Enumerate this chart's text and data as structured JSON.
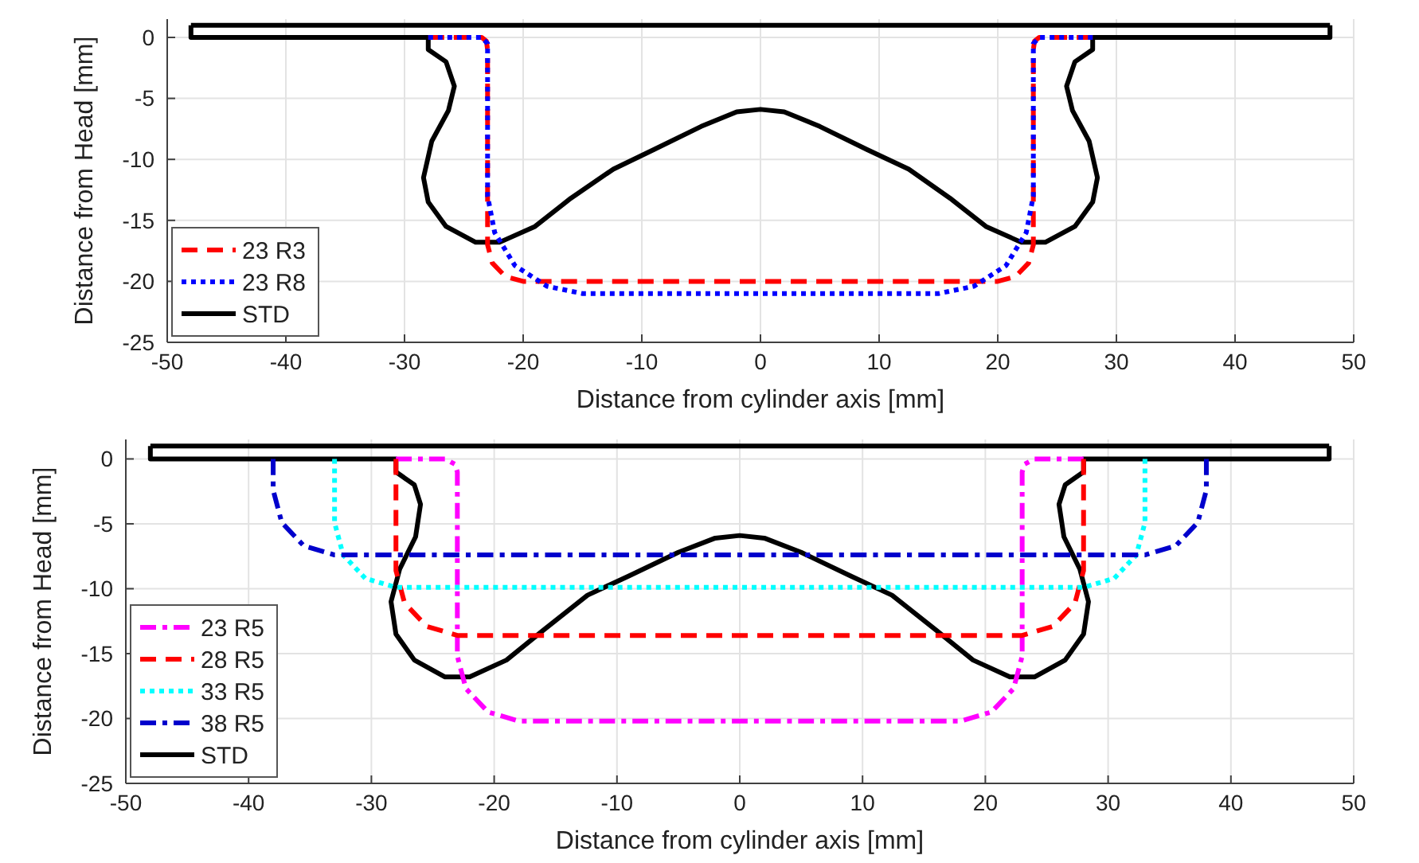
{
  "chart_data": [
    {
      "type": "line",
      "xlabel": "Distance from cylinder axis [mm]",
      "ylabel": "Distance from Head [mm]",
      "xlim": [
        -50,
        50
      ],
      "ylim": [
        -25,
        1.5
      ],
      "xticks": [
        -50,
        -40,
        -30,
        -20,
        -10,
        0,
        10,
        20,
        30,
        40,
        50
      ],
      "yticks": [
        -25,
        -20,
        -15,
        -10,
        -5,
        0
      ],
      "grid": true,
      "legend": "bottom left",
      "marker": "none",
      "series": [
        {
          "name": "23 R3",
          "color": "#ff0000",
          "line_style": "dashed",
          "x": [
            -28,
            -23.5,
            -23.1,
            -23,
            -23,
            -22.6,
            -21.5,
            -20,
            20,
            21.5,
            22.6,
            23,
            23,
            23.1,
            23.5,
            28
          ],
          "values": [
            0,
            0,
            -0.3,
            -1,
            -17,
            -18.5,
            -19.6,
            -20,
            -20,
            -19.6,
            -18.5,
            -17,
            -1,
            -0.3,
            0,
            0
          ]
        },
        {
          "name": "23 R8",
          "color": "#0000ff",
          "line_style": "dotted",
          "x": [
            -28,
            -23.5,
            -23,
            -23,
            -22.4,
            -20.7,
            -18,
            -15,
            15,
            18,
            20.7,
            22.4,
            23,
            23,
            23.5,
            28
          ],
          "values": [
            0,
            0,
            -0.5,
            -13,
            -16,
            -18.7,
            -20.4,
            -21,
            -21,
            -20.4,
            -18.7,
            -16,
            -13,
            -0.5,
            0,
            0
          ]
        },
        {
          "name": "STD",
          "color": "#000000",
          "line_style": "solid",
          "x": [
            -48,
            -48,
            -28,
            -28,
            -26.5,
            -25.8,
            -26.3,
            -27.7,
            -28.4,
            -28,
            -26.5,
            -24,
            -22,
            -19,
            -16,
            -12.4,
            -9,
            -5,
            -2,
            0,
            2,
            5,
            9,
            12.5,
            16,
            19,
            22,
            24,
            26.5,
            28,
            28.4,
            27.7,
            26.3,
            25.8,
            26.5,
            28,
            28,
            48,
            48
          ],
          "values": [
            1,
            0,
            0,
            -1,
            -2,
            -4,
            -6,
            -8.5,
            -11.5,
            -13.5,
            -15.5,
            -16.8,
            -16.8,
            -15.5,
            -13.2,
            -10.8,
            -9.2,
            -7.3,
            -6.1,
            -5.9,
            -6.1,
            -7.3,
            -9.2,
            -10.8,
            -13.2,
            -15.5,
            -16.8,
            -16.8,
            -15.5,
            -13.5,
            -11.5,
            -8.5,
            -6,
            -4,
            -2,
            -1,
            0,
            0,
            1
          ]
        },
        {
          "color": "#000000",
          "line_style": "solid",
          "x": [
            -48,
            48
          ],
          "values": [
            1,
            1
          ]
        }
      ]
    },
    {
      "type": "line",
      "xlabel": "Distance from cylinder axis [mm]",
      "ylabel": "Distance from Head [mm]",
      "xlim": [
        -50,
        50
      ],
      "ylim": [
        -25,
        1.5
      ],
      "xticks": [
        -50,
        -40,
        -30,
        -20,
        -10,
        0,
        10,
        20,
        30,
        40,
        50
      ],
      "yticks": [
        -25,
        -20,
        -15,
        -10,
        -5,
        0
      ],
      "grid": true,
      "legend": "bottom left",
      "marker": "none",
      "series": [
        {
          "name": "23 R5",
          "color": "#ff00ff",
          "line_style": "dashdot",
          "x": [
            -28,
            -24,
            -23.2,
            -23,
            -23,
            -22.3,
            -20.5,
            -18,
            18,
            20.5,
            22.3,
            23,
            23,
            23.2,
            24,
            28
          ],
          "values": [
            0,
            0,
            -0.4,
            -1,
            -15.2,
            -17.7,
            -19.5,
            -20.2,
            -20.2,
            -19.5,
            -17.7,
            -15.2,
            -1,
            -0.4,
            0,
            0
          ]
        },
        {
          "name": "28 R5",
          "color": "#ff0000",
          "line_style": "dashed",
          "x": [
            -28,
            -28,
            -27.3,
            -25.5,
            -23,
            23,
            25.5,
            27.3,
            28,
            28
          ],
          "values": [
            0,
            -8.6,
            -11.1,
            -12.9,
            -13.6,
            -13.6,
            -12.9,
            -11.1,
            -8.6,
            0
          ]
        },
        {
          "name": "33 R5",
          "color": "#00ffff",
          "line_style": "dotted",
          "x": [
            -33,
            -33,
            -32.3,
            -30.5,
            -28,
            28,
            30.5,
            32.3,
            33,
            33
          ],
          "values": [
            0,
            -4.9,
            -7.4,
            -9.2,
            -9.9,
            -9.9,
            -9.2,
            -7.4,
            -4.9,
            0
          ]
        },
        {
          "name": "38 R5",
          "color": "#0000cc",
          "line_style": "dashdot",
          "x": [
            -38,
            -38,
            -37.3,
            -35.5,
            -33,
            33,
            35.5,
            37.3,
            38,
            38
          ],
          "values": [
            0,
            -2.4,
            -4.9,
            -6.7,
            -7.4,
            -7.4,
            -6.7,
            -4.9,
            -2.4,
            0
          ]
        },
        {
          "name": "STD",
          "color": "#000000",
          "line_style": "solid",
          "x": [
            -48,
            -48,
            -28,
            -28,
            -26.5,
            -26,
            -26.4,
            -27.7,
            -28.4,
            -28,
            -26.5,
            -24,
            -22,
            -19,
            -16,
            -12.4,
            -9,
            -5,
            -2,
            0,
            2,
            5,
            9,
            12.4,
            16,
            19,
            22,
            24,
            26.5,
            28,
            28.4,
            27.7,
            26.4,
            26,
            26.5,
            28,
            28,
            48,
            48
          ],
          "values": [
            1,
            0,
            0,
            -1,
            -2,
            -3.5,
            -6,
            -8.5,
            -11,
            -13.5,
            -15.5,
            -16.8,
            -16.8,
            -15.5,
            -13.2,
            -10.5,
            -9,
            -7.2,
            -6.1,
            -5.9,
            -6.1,
            -7.2,
            -9,
            -10.5,
            -13.2,
            -15.5,
            -16.8,
            -16.8,
            -15.5,
            -13.5,
            -11,
            -8.5,
            -6,
            -3.5,
            -2,
            -1,
            0,
            0,
            1
          ]
        },
        {
          "color": "#000000",
          "line_style": "solid",
          "x": [
            -48,
            48
          ],
          "values": [
            1,
            1
          ]
        }
      ]
    }
  ]
}
